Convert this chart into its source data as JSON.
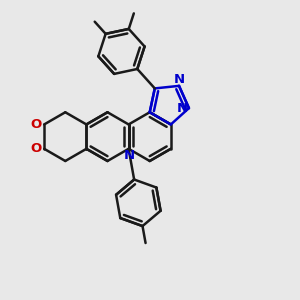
{
  "bg_color": "#e8e8e8",
  "bc": "#1a1a1a",
  "bb": "#0000cc",
  "br": "#cc0000",
  "lw": 1.8,
  "lw_thin": 1.5,
  "figsize": [
    3.0,
    3.0
  ],
  "dpi": 100,
  "R": 0.082,
  "xlim": [
    0.0,
    1.0
  ],
  "ylim": [
    0.0,
    1.0
  ]
}
